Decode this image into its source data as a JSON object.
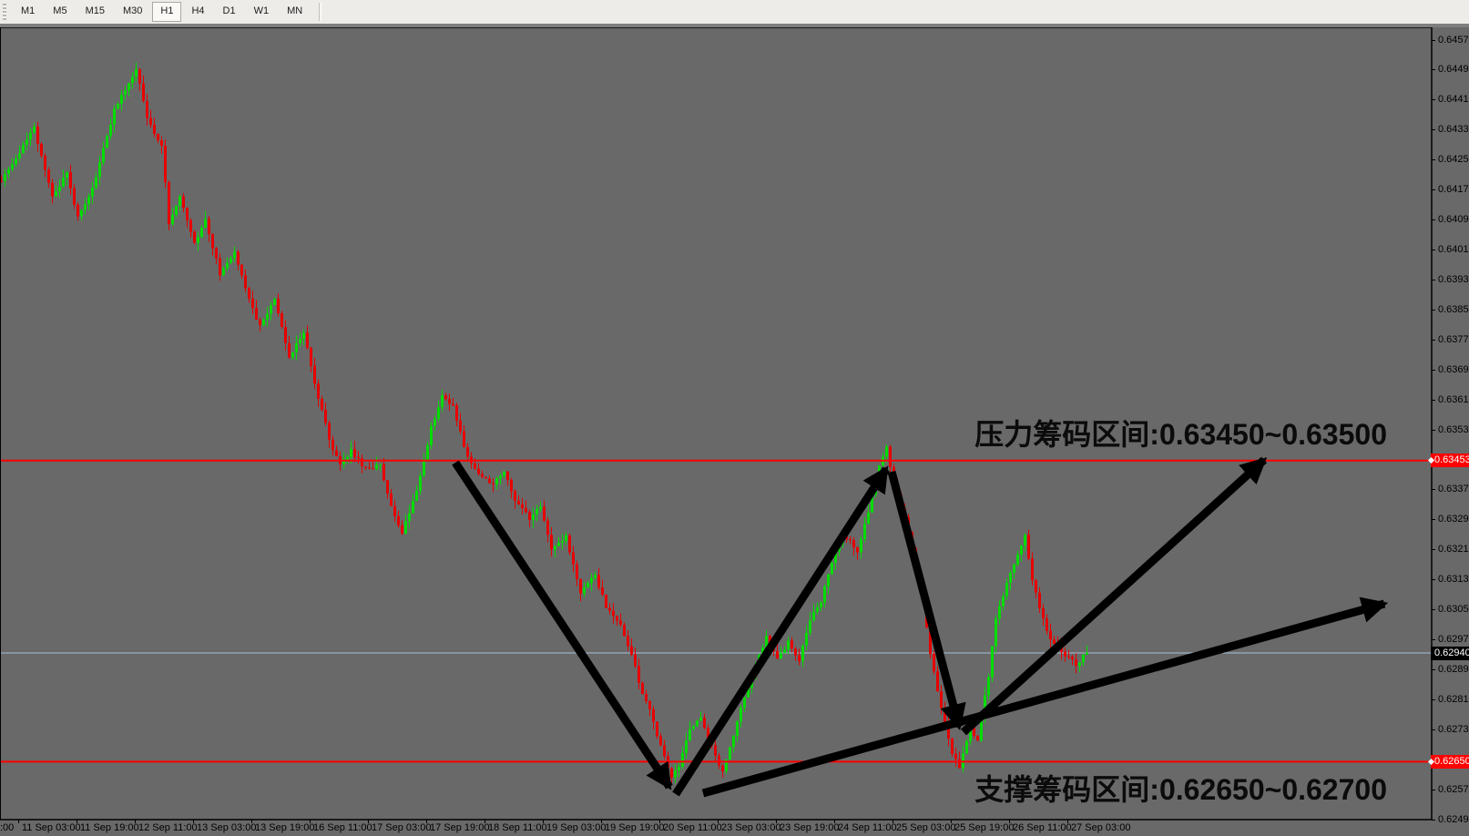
{
  "toolbar": {
    "timeframes": [
      {
        "label": "M1",
        "active": false
      },
      {
        "label": "M5",
        "active": false
      },
      {
        "label": "M15",
        "active": false
      },
      {
        "label": "M30",
        "active": false
      },
      {
        "label": "H1",
        "active": true
      },
      {
        "label": "H4",
        "active": false
      },
      {
        "label": "D1",
        "active": false
      },
      {
        "label": "W1",
        "active": false
      },
      {
        "label": "MN",
        "active": false
      }
    ]
  },
  "annotations": {
    "resistance_note": "压力筹码区间:0.63450~0.63500",
    "support_note": "支撑筹码区间:0.62650~0.62700"
  },
  "colors": {
    "chart_background": "#696969",
    "bull": "#00DC00",
    "bear": "#E80000",
    "level_line": "#FF0000",
    "current_price_line": "#A6BED9",
    "arrow": "#000000",
    "axis_text": "#000000",
    "current_price_box": "#000000",
    "level_box": "#FF0000"
  },
  "chart_data": {
    "type": "candlestick",
    "timeframe": "H1",
    "bar_count": 299,
    "bars_per_time_tick": 16,
    "price_axis_ticks": [
      0.64575,
      0.64495,
      0.64415,
      0.64335,
      0.64255,
      0.64175,
      0.64095,
      0.64015,
      0.63935,
      0.63855,
      0.63775,
      0.63695,
      0.63615,
      0.63535,
      0.63455,
      0.63375,
      0.63295,
      0.63215,
      0.63135,
      0.63055,
      0.62975,
      0.62895,
      0.62815,
      0.62735,
      0.62655,
      0.62575,
      0.62495
    ],
    "partial_time_label": ":00",
    "time_ticks": [
      "11 Sep 03:00",
      "11 Sep 19:00",
      "12 Sep 11:00",
      "13 Sep 03:00",
      "13 Sep 19:00",
      "16 Sep 11:00",
      "17 Sep 03:00",
      "17 Sep 19:00",
      "18 Sep 11:00",
      "19 Sep 03:00",
      "19 Sep 19:00",
      "20 Sep 11:00",
      "23 Sep 03:00",
      "23 Sep 19:00",
      "24 Sep 11:00",
      "25 Sep 03:00",
      "25 Sep 19:00",
      "26 Sep 11:00",
      "27 Sep 03:00"
    ],
    "current_price": 0.6294,
    "current_price_label": "0.62940",
    "levels": {
      "resistance": 0.63453,
      "resistance_label": "0.63453",
      "support": 0.6265,
      "support_label": "0.62650"
    },
    "zones": {
      "resistance": [
        0.6345,
        0.635
      ],
      "support": [
        0.6265,
        0.627
      ]
    },
    "price_path_waypoints": [
      [
        0,
        0.642
      ],
      [
        9,
        0.6434
      ],
      [
        14,
        0.6416
      ],
      [
        18,
        0.6422
      ],
      [
        21,
        0.641
      ],
      [
        25,
        0.6418
      ],
      [
        31,
        0.6439
      ],
      [
        37,
        0.645
      ],
      [
        40,
        0.6437
      ],
      [
        44,
        0.6429
      ],
      [
        46,
        0.6409
      ],
      [
        49,
        0.6416
      ],
      [
        53,
        0.6403
      ],
      [
        56,
        0.641
      ],
      [
        60,
        0.6395
      ],
      [
        64,
        0.6401
      ],
      [
        68,
        0.6388
      ],
      [
        71,
        0.6381
      ],
      [
        75,
        0.6388
      ],
      [
        79,
        0.6373
      ],
      [
        83,
        0.638
      ],
      [
        86,
        0.6366
      ],
      [
        90,
        0.6351
      ],
      [
        93,
        0.6344
      ],
      [
        96,
        0.6348
      ],
      [
        100,
        0.6343
      ],
      [
        104,
        0.6344
      ],
      [
        108,
        0.633
      ],
      [
        110,
        0.6326
      ],
      [
        114,
        0.6337
      ],
      [
        118,
        0.6354
      ],
      [
        121,
        0.6363
      ],
      [
        124,
        0.636
      ],
      [
        128,
        0.6346
      ],
      [
        131,
        0.6342
      ],
      [
        135,
        0.6339
      ],
      [
        138,
        0.6343
      ],
      [
        141,
        0.6335
      ],
      [
        145,
        0.633
      ],
      [
        148,
        0.6333
      ],
      [
        151,
        0.6322
      ],
      [
        155,
        0.6325
      ],
      [
        159,
        0.631
      ],
      [
        163,
        0.6315
      ],
      [
        166,
        0.6306
      ],
      [
        170,
        0.6301
      ],
      [
        173,
        0.6294
      ],
      [
        175,
        0.6286
      ],
      [
        178,
        0.6279
      ],
      [
        181,
        0.6269
      ],
      [
        184,
        0.6261
      ],
      [
        186,
        0.6264
      ],
      [
        189,
        0.6274
      ],
      [
        192,
        0.6277
      ],
      [
        195,
        0.6269
      ],
      [
        198,
        0.6262
      ],
      [
        200,
        0.6269
      ],
      [
        203,
        0.6279
      ],
      [
        206,
        0.6288
      ],
      [
        210,
        0.6298
      ],
      [
        213,
        0.6292
      ],
      [
        216,
        0.6297
      ],
      [
        219,
        0.6292
      ],
      [
        222,
        0.6303
      ],
      [
        225,
        0.6308
      ],
      [
        228,
        0.6318
      ],
      [
        231,
        0.6326
      ],
      [
        235,
        0.6321
      ],
      [
        238,
        0.6332
      ],
      [
        241,
        0.6344
      ],
      [
        243,
        0.6349
      ],
      [
        245,
        0.6339
      ],
      [
        248,
        0.633
      ],
      [
        250,
        0.6322
      ],
      [
        253,
        0.6308
      ],
      [
        255,
        0.6294
      ],
      [
        258,
        0.6279
      ],
      [
        261,
        0.6267
      ],
      [
        263,
        0.62635
      ],
      [
        266,
        0.6274
      ],
      [
        268,
        0.6271
      ],
      [
        271,
        0.6288
      ],
      [
        273,
        0.6303
      ],
      [
        276,
        0.6313
      ],
      [
        278,
        0.6318
      ],
      [
        281,
        0.6325
      ],
      [
        283,
        0.6313
      ],
      [
        286,
        0.6303
      ],
      [
        288,
        0.6298
      ],
      [
        291,
        0.6294
      ],
      [
        295,
        0.6291
      ],
      [
        298,
        0.6294
      ]
    ],
    "arrows": [
      {
        "name": "decline-to-support",
        "from": [
          500,
          508
        ],
        "to": [
          735,
          864
        ]
      },
      {
        "name": "rally-to-resistance",
        "from": [
          742,
          872
        ],
        "to": [
          973,
          515
        ]
      },
      {
        "name": "drop-back-to-support",
        "from": [
          979,
          518
        ],
        "to": [
          1053,
          798
        ]
      },
      {
        "name": "projected-rally-to-resistance",
        "from": [
          1058,
          804
        ],
        "to": [
          1388,
          505
        ]
      },
      {
        "name": "projected-uptrend",
        "from": [
          772,
          871
        ],
        "to": [
          1520,
          663
        ]
      }
    ]
  }
}
